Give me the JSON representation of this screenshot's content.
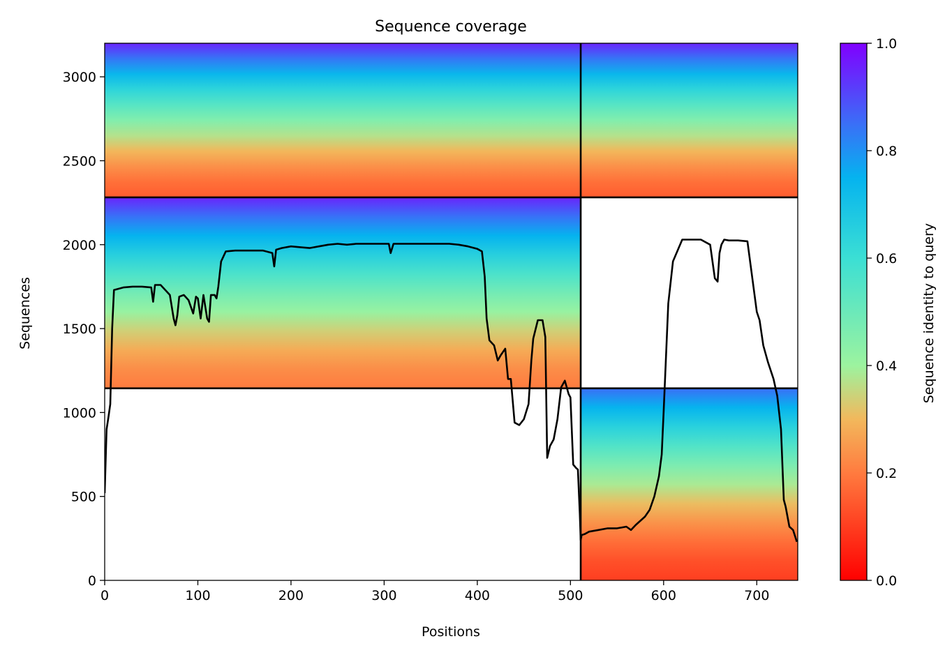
{
  "chart_data": {
    "type": "heatmap",
    "title": "Sequence coverage",
    "xlabel": "Positions",
    "ylabel": "Sequences",
    "xlim": [
      0,
      744
    ],
    "ylim": [
      0,
      3200
    ],
    "xticks": [
      0,
      100,
      200,
      300,
      400,
      500,
      600,
      700
    ],
    "yticks": [
      0,
      500,
      1000,
      1500,
      2000,
      2500,
      3000
    ],
    "colorbar": {
      "label": "Sequence identity to query",
      "ticks": [
        0.0,
        0.2,
        0.4,
        0.6,
        0.8,
        1.0
      ],
      "tick_labels": [
        "0.0",
        "0.2",
        "0.4",
        "0.6",
        "0.8",
        "1.0"
      ],
      "colormap": "rainbow_r",
      "range": [
        0,
        1
      ]
    },
    "grid": false,
    "separators": {
      "chain_boundary_x": 511,
      "horizontal_y": [
        1144,
        2282
      ]
    },
    "blocks": [
      {
        "x": [
          0,
          511
        ],
        "y": [
          2282,
          3200
        ],
        "identity_top": 0.95,
        "identity_bottom": 0.15
      },
      {
        "x": [
          511,
          744
        ],
        "y": [
          2282,
          3200
        ],
        "identity_top": 0.95,
        "identity_bottom": 0.15
      },
      {
        "x": [
          0,
          511
        ],
        "y": [
          1144,
          2282
        ],
        "identity_top": 0.95,
        "identity_bottom": 0.2
      },
      {
        "x": [
          511,
          744
        ],
        "y": [
          0,
          1144
        ],
        "identity_top": 0.85,
        "identity_bottom": 0.1
      }
    ],
    "series": [
      {
        "x": [
          0,
          2,
          4,
          6,
          8,
          10,
          20,
          30,
          40,
          50,
          52,
          54,
          60,
          70,
          74,
          76,
          78,
          80,
          85,
          90,
          95,
          98,
          100,
          103,
          106,
          110,
          112,
          114,
          118,
          120,
          122,
          125,
          130,
          140,
          150,
          160,
          170,
          180,
          182,
          184,
          190,
          200,
          210,
          220,
          230,
          240,
          250,
          260,
          270,
          280,
          290,
          300,
          305,
          307,
          310,
          320,
          330,
          340,
          350,
          360,
          370,
          380,
          390,
          400,
          405,
          408,
          410,
          413,
          418,
          422,
          425,
          430,
          433,
          436,
          440,
          445,
          450,
          455,
          458,
          460,
          465,
          470,
          473,
          475,
          478,
          482,
          486,
          490,
          494,
          498,
          500,
          503,
          506,
          508,
          510,
          511,
          512,
          515,
          520,
          530,
          540,
          550,
          560,
          565,
          570,
          580,
          585,
          590,
          595,
          598,
          600,
          605,
          610,
          620,
          630,
          640,
          650,
          655,
          658,
          660,
          662,
          665,
          670,
          680,
          690,
          700,
          703,
          707,
          712,
          718,
          722,
          726,
          729,
          731,
          735,
          739,
          743
        ],
        "y": [
          520,
          900,
          970,
          1050,
          1500,
          1730,
          1745,
          1750,
          1750,
          1745,
          1660,
          1760,
          1760,
          1700,
          1560,
          1520,
          1580,
          1690,
          1700,
          1670,
          1590,
          1690,
          1680,
          1560,
          1700,
          1560,
          1540,
          1700,
          1700,
          1680,
          1750,
          1900,
          1960,
          1965,
          1965,
          1965,
          1965,
          1950,
          1870,
          1970,
          1980,
          1990,
          1985,
          1980,
          1990,
          2000,
          2005,
          2000,
          2005,
          2005,
          2005,
          2005,
          2005,
          1950,
          2005,
          2005,
          2005,
          2005,
          2005,
          2005,
          2005,
          2000,
          1990,
          1975,
          1960,
          1810,
          1560,
          1430,
          1400,
          1310,
          1340,
          1380,
          1200,
          1200,
          940,
          925,
          960,
          1050,
          1310,
          1440,
          1550,
          1550,
          1450,
          730,
          800,
          840,
          960,
          1150,
          1190,
          1110,
          1090,
          690,
          670,
          660,
          400,
          240,
          270,
          275,
          290,
          300,
          310,
          310,
          320,
          300,
          330,
          380,
          420,
          500,
          620,
          750,
          1000,
          1650,
          1900,
          2030,
          2030,
          2030,
          2000,
          1800,
          1780,
          1950,
          2000,
          2030,
          2025,
          2025,
          2020,
          1600,
          1550,
          1400,
          1300,
          1200,
          1100,
          900,
          480,
          440,
          320,
          300,
          230
        ]
      }
    ]
  }
}
